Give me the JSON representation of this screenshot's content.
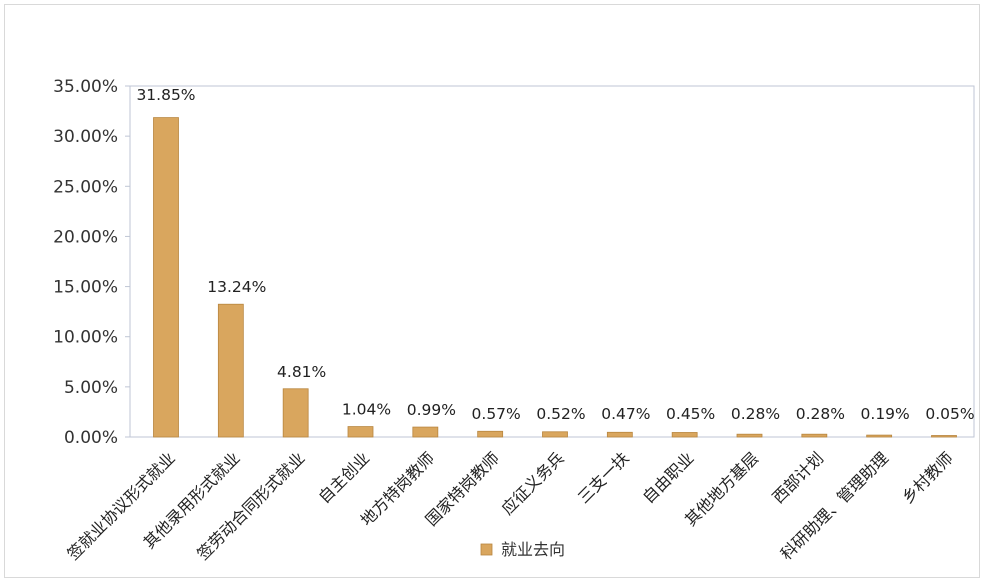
{
  "chart_data": {
    "type": "bar",
    "categories": [
      "签就业协议形式就业",
      "其他录用形式就业",
      "签劳动合同形式就业",
      "自主创业",
      "地方特岗教师",
      "国家特岗教师",
      "应征义务兵",
      "三支一扶",
      "自由职业",
      "其他地方基层",
      "西部计划",
      "科研助理、管理助理",
      "乡村教师"
    ],
    "values": [
      31.85,
      13.24,
      4.81,
      1.04,
      0.99,
      0.57,
      0.52,
      0.47,
      0.45,
      0.28,
      0.28,
      0.19,
      0.05
    ],
    "data_labels": [
      "31.85%",
      "13.24%",
      "4.81%",
      "1.04%",
      "0.99%",
      "0.57%",
      "0.52%",
      "0.47%",
      "0.45%",
      "0.28%",
      "0.28%",
      "0.19%",
      "0.05%"
    ],
    "ylim": [
      0,
      35
    ],
    "yticks": [
      0,
      5,
      10,
      15,
      20,
      25,
      30,
      35
    ],
    "ytick_labels": [
      "0.00%",
      "5.00%",
      "10.00%",
      "15.00%",
      "20.00%",
      "25.00%",
      "30.00%",
      "35.00%"
    ],
    "title": "",
    "xlabel": "",
    "ylabel": "",
    "series": [
      {
        "name": "就业去向",
        "values": [
          31.85,
          13.24,
          4.81,
          1.04,
          0.99,
          0.57,
          0.52,
          0.47,
          0.45,
          0.28,
          0.28,
          0.19,
          0.05
        ]
      }
    ],
    "legend_position": "bottom",
    "grid": false,
    "bar_color": "#D9A65E",
    "bar_edge_color": "#B8863F",
    "axis_color": "#bfc6d4"
  }
}
